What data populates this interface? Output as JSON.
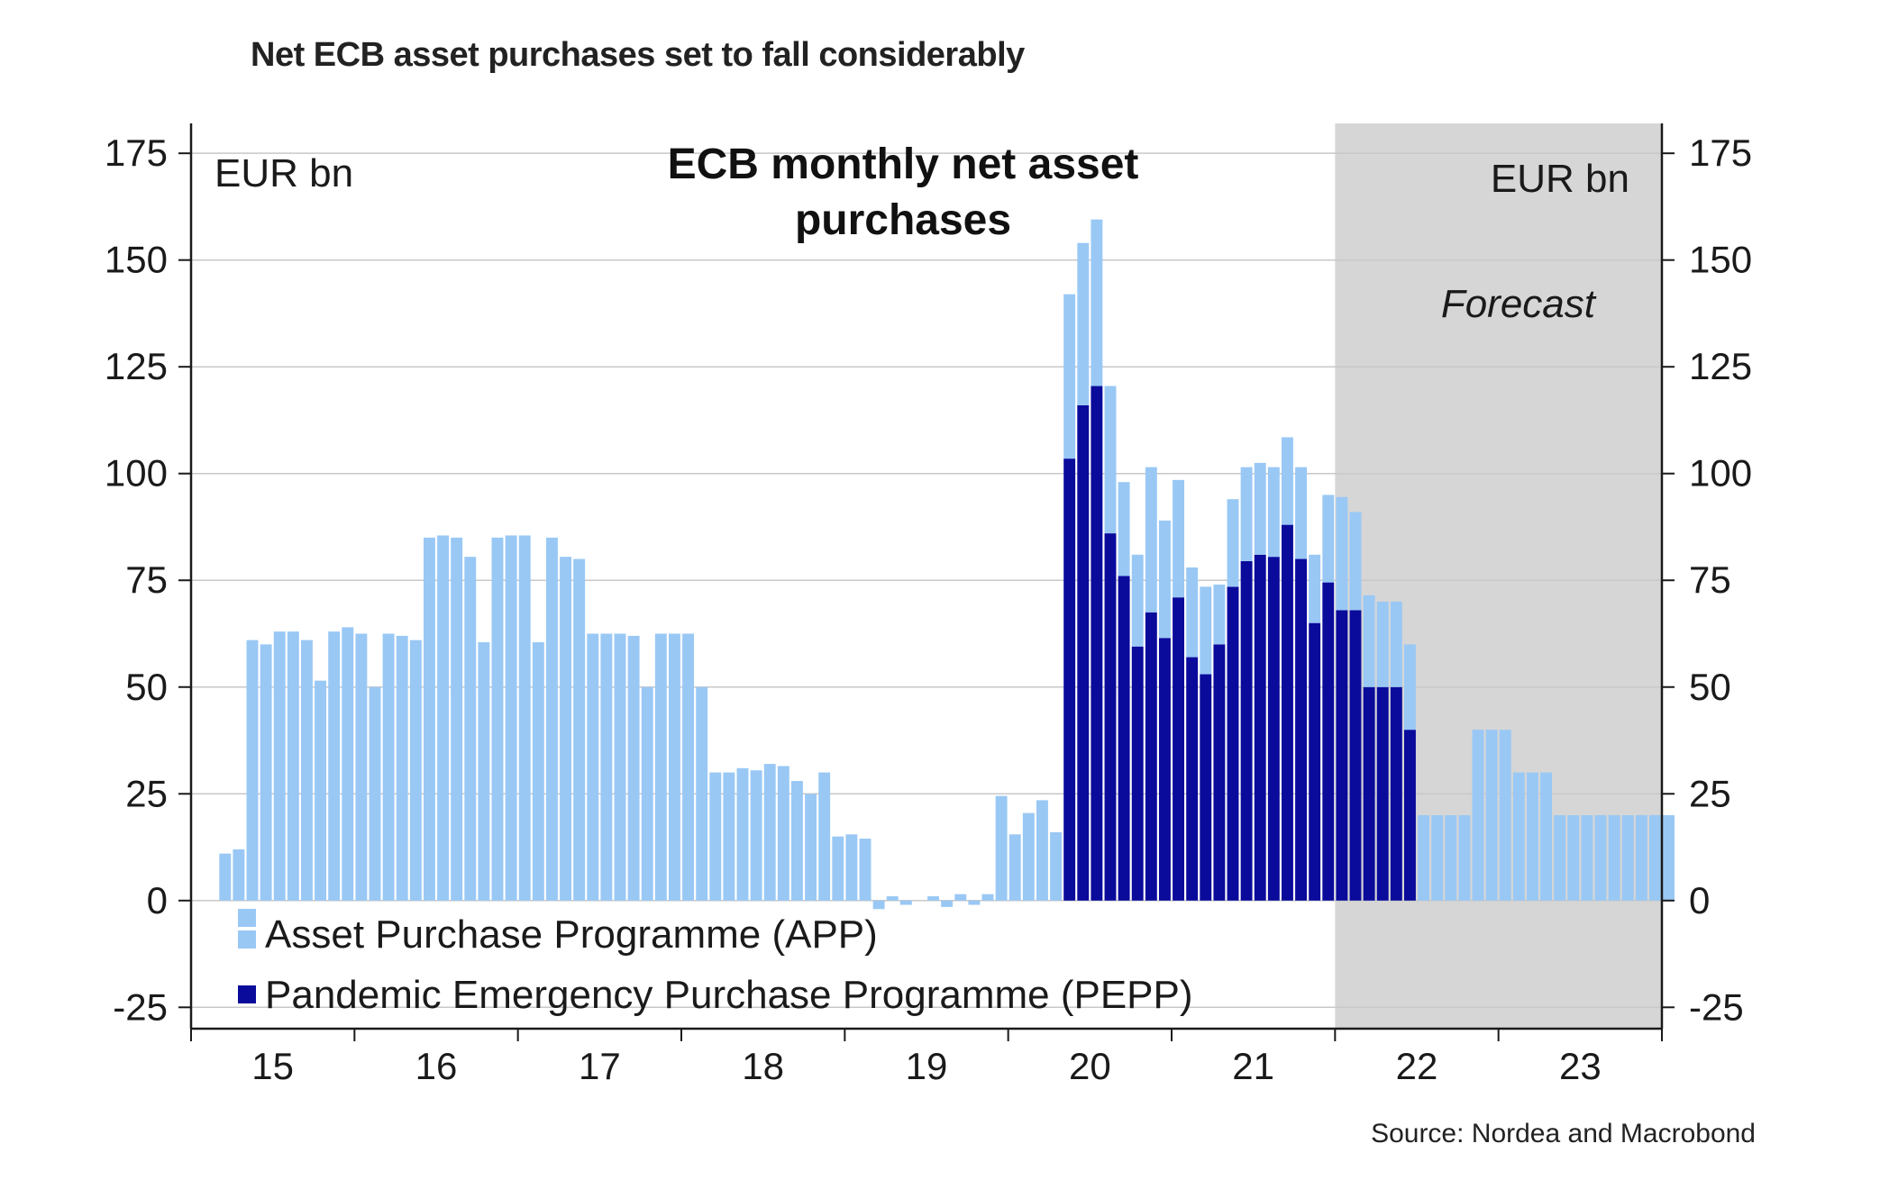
{
  "headline": "Net ECB asset purchases set to fall considerably",
  "source": "Source: Nordea and Macrobond",
  "colors": {
    "app": "#99c8f5",
    "pepp": "#0a0a9b",
    "forecast_bg": "#d6d6d6",
    "grid": "#c8c8c8",
    "axis": "#1a1a1a"
  },
  "chart_data": {
    "type": "bar",
    "stacked": true,
    "title": "ECB monthly net asset purchases",
    "title_lines": [
      "ECB monthly net asset",
      "purchases"
    ],
    "unit_left": "EUR bn",
    "unit_right": "EUR bn",
    "forecast_label": "Forecast",
    "forecast_start": "2022-01",
    "ylim": [
      -30,
      182
    ],
    "yticks": [
      -25,
      0,
      25,
      50,
      75,
      100,
      125,
      150,
      175
    ],
    "xlim": [
      "2015-01",
      "2023-12"
    ],
    "xtick_labels": [
      "15",
      "16",
      "17",
      "18",
      "19",
      "20",
      "21",
      "22",
      "23"
    ],
    "grid": true,
    "legend_position": "bottom-left",
    "x_start_month": "2015-03",
    "series": [
      {
        "name": "Asset Purchase Programme (APP)",
        "color": "#99c8f5",
        "values": [
          11,
          12,
          61,
          60,
          63,
          63,
          61,
          51.5,
          63,
          64,
          62.5,
          50,
          62.5,
          62,
          61,
          85,
          85.5,
          85,
          80.5,
          60.5,
          85,
          85.5,
          85.5,
          60.5,
          85,
          80.5,
          80,
          62.5,
          62.5,
          62.5,
          62,
          50,
          62.5,
          62.5,
          62.5,
          50,
          30,
          30,
          31,
          30.5,
          32,
          31.5,
          28,
          25,
          30,
          15,
          15.5,
          14.5,
          -2,
          1,
          -1,
          0,
          1,
          -1.5,
          1.5,
          -1,
          1.5,
          24.5,
          15.5,
          20.5,
          23.5,
          16,
          38.5,
          38,
          39,
          34.5,
          22,
          21.5,
          34,
          27.5,
          27.5,
          21,
          20.5,
          14,
          20.5,
          22,
          21.5,
          21,
          20.5,
          21.5,
          16,
          20.5,
          26.5,
          23,
          21.5,
          20,
          20,
          20,
          20,
          20,
          20,
          20,
          40,
          40,
          40,
          30,
          30,
          30,
          20,
          20,
          20,
          20,
          20,
          20,
          20,
          20,
          20
        ]
      },
      {
        "name": "Pandemic Emergency Purchase Programme (PEPP)",
        "color": "#0a0a9b",
        "values": [
          0,
          0,
          0,
          0,
          0,
          0,
          0,
          0,
          0,
          0,
          0,
          0,
          0,
          0,
          0,
          0,
          0,
          0,
          0,
          0,
          0,
          0,
          0,
          0,
          0,
          0,
          0,
          0,
          0,
          0,
          0,
          0,
          0,
          0,
          0,
          0,
          0,
          0,
          0,
          0,
          0,
          0,
          0,
          0,
          0,
          0,
          0,
          0,
          0,
          0,
          0,
          0,
          0,
          0,
          0,
          0,
          0,
          0,
          0,
          0,
          0,
          0,
          103.5,
          116,
          120.5,
          86,
          76,
          59.5,
          67.5,
          61.5,
          71,
          57,
          53,
          60,
          73.5,
          79.5,
          81,
          80.5,
          88,
          80,
          65,
          74.5,
          68,
          68,
          50,
          50,
          50,
          40,
          0,
          0,
          0,
          0,
          0,
          0,
          0,
          0,
          0,
          0,
          0,
          0,
          0,
          0,
          0,
          0,
          0
        ]
      }
    ]
  }
}
